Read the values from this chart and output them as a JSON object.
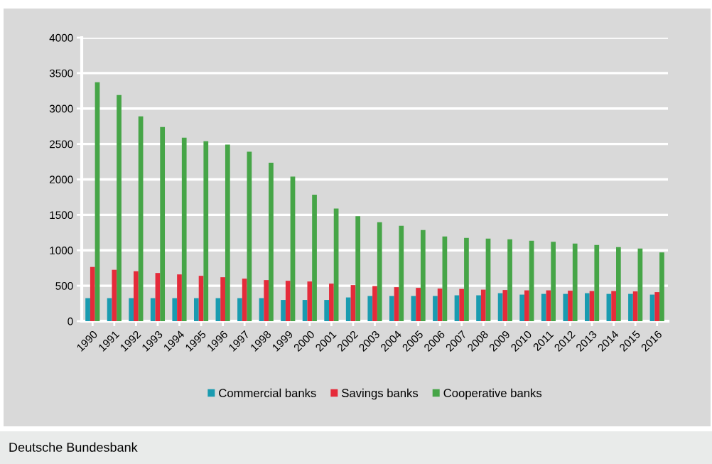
{
  "chart_data": {
    "type": "bar",
    "categories": [
      "1990",
      "1991",
      "1992",
      "1993",
      "1994",
      "1995",
      "1996",
      "1997",
      "1998",
      "1999",
      "2000",
      "2001",
      "2002",
      "2003",
      "2004",
      "2005",
      "2006",
      "2007",
      "2008",
      "2009",
      "2010",
      "2011",
      "2012",
      "2013",
      "2014",
      "2015",
      "2016"
    ],
    "series": [
      {
        "name": "Commercial banks",
        "color": "#1a9bb0",
        "values": [
          325,
          325,
          325,
          325,
          325,
          325,
          325,
          325,
          325,
          300,
          300,
          300,
          335,
          355,
          355,
          355,
          355,
          365,
          365,
          395,
          375,
          385,
          385,
          395,
          385,
          385,
          375
        ]
      },
      {
        "name": "Savings banks",
        "color": "#e52b3a",
        "values": [
          765,
          725,
          705,
          680,
          660,
          640,
          620,
          600,
          580,
          570,
          560,
          530,
          510,
          495,
          480,
          470,
          460,
          455,
          445,
          440,
          435,
          435,
          430,
          425,
          425,
          420,
          410
        ]
      },
      {
        "name": "Cooperative banks",
        "color": "#46a547",
        "values": [
          3370,
          3190,
          2890,
          2740,
          2590,
          2540,
          2490,
          2390,
          2235,
          2040,
          1785,
          1590,
          1480,
          1395,
          1345,
          1285,
          1195,
          1175,
          1165,
          1155,
          1135,
          1120,
          1095,
          1075,
          1045,
          1025,
          970
        ]
      }
    ],
    "ylim": [
      0,
      4000
    ],
    "yticks": [
      0,
      500,
      1000,
      1500,
      2000,
      2500,
      3000,
      3500,
      4000
    ],
    "grid": "y",
    "legend": "bottom",
    "annotations": [
      "Deutsche Bundesbank"
    ]
  }
}
